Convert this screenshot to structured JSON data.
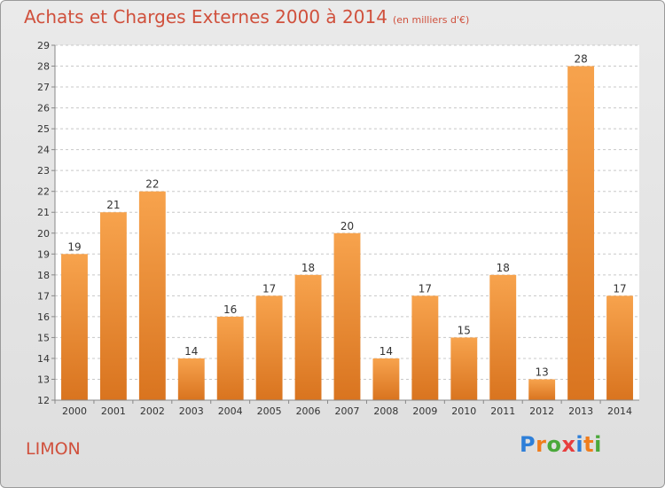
{
  "header": {
    "title": "Achats et Charges Externes 2000 à 2014",
    "subtitle": "(en milliers d'€)"
  },
  "footer": {
    "place": "LIMON",
    "logo_letters": [
      "P",
      "r",
      "o",
      "x",
      "i",
      "t",
      "i"
    ],
    "logo_colors": [
      "#2e7fd8",
      "#f07d1c",
      "#4aa83a",
      "#e83d3d",
      "#2e7fd8",
      "#f07d1c",
      "#4aa83a"
    ]
  },
  "colors": {
    "title": "#d0503c",
    "bar_top": "#f7a34d",
    "bar_bottom": "#d9741f",
    "grid": "#c8c8c8"
  },
  "chart_data": {
    "type": "bar",
    "title": "Achats et Charges Externes 2000 à 2014",
    "subtitle": "(en milliers d'€)",
    "xlabel": "",
    "ylabel": "",
    "categories": [
      "2000",
      "2001",
      "2002",
      "2003",
      "2004",
      "2005",
      "2006",
      "2007",
      "2008",
      "2009",
      "2010",
      "2011",
      "2012",
      "2013",
      "2014"
    ],
    "values": [
      19,
      21,
      22,
      14,
      16,
      17,
      18,
      20,
      14,
      17,
      15,
      18,
      13,
      28,
      17
    ],
    "ylim": [
      12,
      29
    ],
    "yticks": [
      "12",
      "13",
      "14",
      "15",
      "16",
      "17",
      "18",
      "19",
      "20",
      "21",
      "22",
      "23",
      "24",
      "25",
      "26",
      "27",
      "28",
      "29"
    ],
    "grid": true,
    "data_labels": true
  }
}
